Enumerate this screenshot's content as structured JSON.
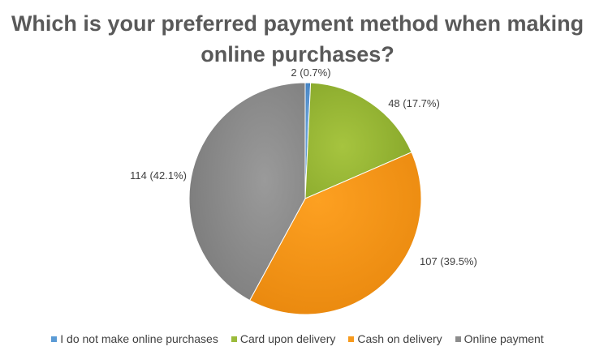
{
  "chart_data": {
    "type": "pie",
    "title": "Which is your preferred payment method when making online purchases?",
    "categories": [
      "I do not make online purchases",
      "Card upon delivery",
      "Cash on delivery",
      "Online payment"
    ],
    "values": [
      2,
      48,
      107,
      114
    ],
    "percent_labels": [
      "2 (0.7%)",
      "48 (17.7%)",
      "107 (39.5%)",
      "114 (42.1%)"
    ],
    "colors": [
      "#5B9BD5",
      "#9BBB3B",
      "#F79A1D",
      "#8C8C8C"
    ],
    "legend_position": "bottom",
    "start_angle": "top, clockwise"
  }
}
